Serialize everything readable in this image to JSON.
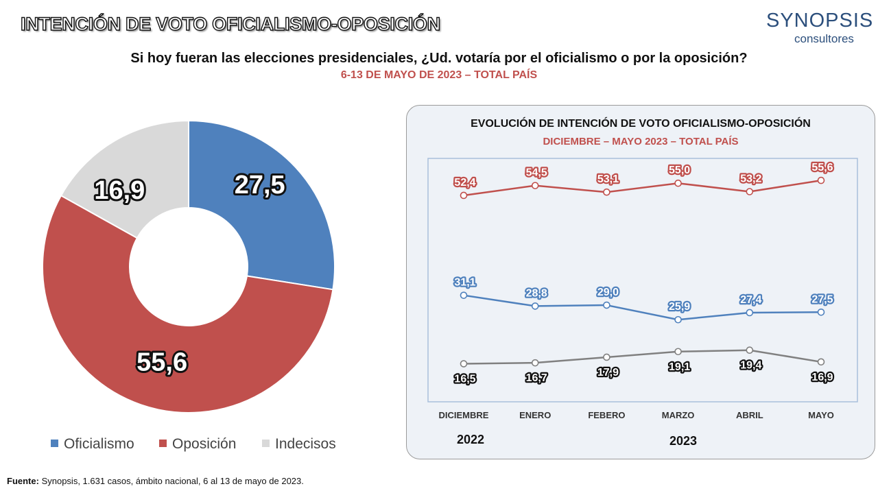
{
  "header": {
    "title": "INTENCIÓN DE VOTO OFICIALISMO-OPOSICIÓN",
    "question": "Si hoy fueran las elecciones presidenciales, ¿Ud. votaría por el oficialismo o por la oposición?",
    "date_line": "6-13 DE MAYO DE 2023 – TOTAL PAÍS"
  },
  "logo": {
    "name": "SYNOPSIS",
    "tagline": "consultores"
  },
  "footer": {
    "label": "Fuente:",
    "text": " Synopsis, 1.631 casos, ámbito nacional, 6 al 13 de mayo de 2023."
  },
  "chart_data": [
    {
      "type": "pie",
      "donut": true,
      "labels": [
        "Oficialismo",
        "Oposición",
        "Indecisos"
      ],
      "values": [
        27.5,
        55.6,
        16.9
      ],
      "value_labels": [
        "27,5",
        "55,6",
        "16,9"
      ],
      "colors": [
        "#4f81bd",
        "#c0504d",
        "#d9d9d9"
      ],
      "legend": "bottom"
    },
    {
      "type": "line",
      "title": "EVOLUCIÓN DE INTENCIÓN DE VOTO OFICIALISMO-OPOSICIÓN",
      "subtitle": "DICIEMBRE – MAYO 2023 – TOTAL PAÍS",
      "categories": [
        "DICIEMBRE",
        "ENERO",
        "FEBERO",
        "MARZO",
        "ABRIL",
        "MAYO"
      ],
      "year_labels": [
        "2022",
        "2023"
      ],
      "ylim": [
        10,
        60
      ],
      "grid": false,
      "series": [
        {
          "color": "#c0504d",
          "values": [
            52.4,
            54.5,
            53.1,
            55.0,
            53.2,
            55.6
          ],
          "labels": [
            "52,4",
            "54,5",
            "53,1",
            "55,0",
            "53,2",
            "55,6"
          ],
          "label_position": "above"
        },
        {
          "color": "#4f81bd",
          "values": [
            31.1,
            28.8,
            29.0,
            25.9,
            27.4,
            27.5
          ],
          "labels": [
            "31,1",
            "28,8",
            "29,0",
            "25,9",
            "27,4",
            "27,5"
          ],
          "label_position": "above"
        },
        {
          "color": "#808080",
          "values": [
            16.5,
            16.7,
            17.9,
            19.1,
            19.4,
            16.9
          ],
          "labels": [
            "16,5",
            "16,7",
            "17,9",
            "19,1",
            "19,4",
            "16,9"
          ],
          "label_position": "below"
        }
      ]
    }
  ]
}
